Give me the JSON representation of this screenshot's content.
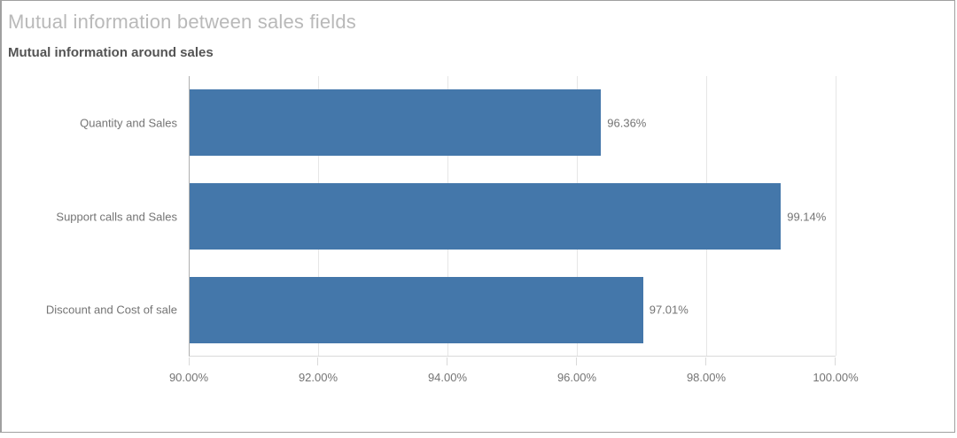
{
  "page": {
    "title": "Mutual information between sales fields"
  },
  "colors": {
    "bar": "#4477aa",
    "title": "#b9b9b9",
    "chart_title": "#545454",
    "label": "#747474",
    "gridline": "#e6e6e6",
    "axis_line": "#b0b0b0",
    "baseline": "#d9d9d9",
    "frame_border": "#a0a0a0"
  },
  "chart_data": {
    "type": "bar",
    "orientation": "horizontal",
    "title": "Mutual information around sales",
    "categories": [
      "Quantity and Sales",
      "Support calls and Sales",
      "Discount and Cost of sale"
    ],
    "values": [
      96.36,
      99.14,
      97.01
    ],
    "value_labels": [
      "96.36%",
      "99.14%",
      "97.01%"
    ],
    "xlabel": "",
    "ylabel": "",
    "xlim": [
      90,
      100
    ],
    "x_ticks": [
      90,
      92,
      94,
      96,
      98,
      100
    ],
    "x_tick_labels": [
      "90.00%",
      "92.00%",
      "94.00%",
      "96.00%",
      "98.00%",
      "100.00%"
    ],
    "grid": true,
    "legend": false
  }
}
